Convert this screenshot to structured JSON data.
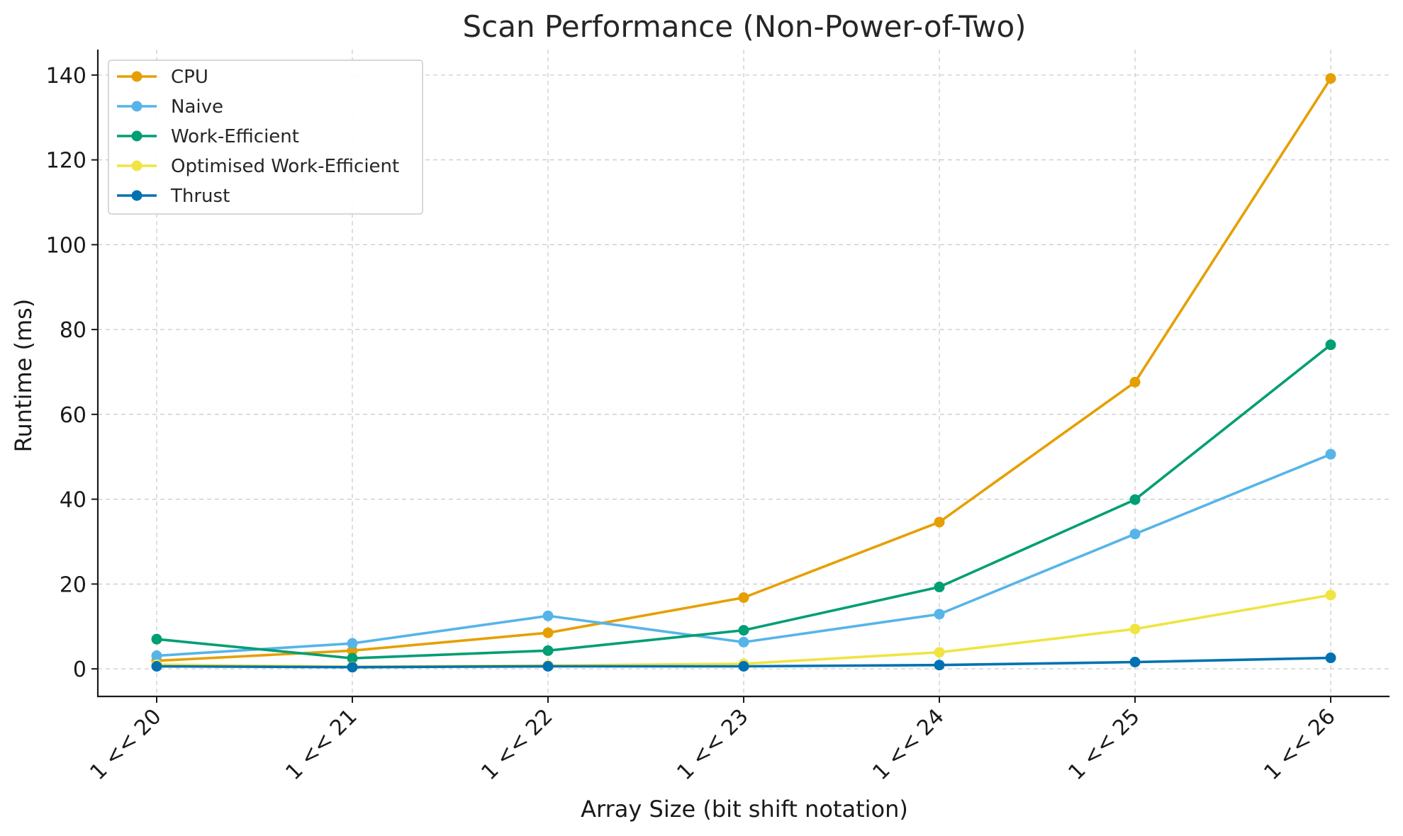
{
  "chart_data": {
    "type": "line",
    "title": "Scan Performance (Non-Power-of-Two)",
    "xlabel": "Array Size (bit shift notation)",
    "ylabel": "Runtime (ms)",
    "categories": [
      "1 << 20",
      "1 << 21",
      "1 << 22",
      "1 << 23",
      "1 << 24",
      "1 << 25",
      "1 << 26"
    ],
    "yticks": [
      0,
      20,
      40,
      60,
      80,
      100,
      120,
      140
    ],
    "ylim": [
      -6.5,
      146
    ],
    "grid": true,
    "legend_position": "top-left",
    "series": [
      {
        "name": "CPU",
        "color": "#E69F00",
        "values": [
          1.9,
          4.3,
          8.5,
          16.8,
          34.6,
          67.6,
          139.2
        ]
      },
      {
        "name": "Naive",
        "color": "#56B4E9",
        "values": [
          3.1,
          6.0,
          12.5,
          6.3,
          12.9,
          31.8,
          50.6
        ]
      },
      {
        "name": "Work-Efficient",
        "color": "#009E73",
        "values": [
          7.0,
          2.5,
          4.3,
          9.1,
          19.3,
          39.9,
          76.4
        ]
      },
      {
        "name": "Optimised Work-Efficient",
        "color": "#F0E442",
        "values": [
          1.0,
          0.5,
          0.8,
          1.2,
          3.9,
          9.4,
          17.4
        ]
      },
      {
        "name": "Thrust",
        "color": "#0072B2",
        "values": [
          0.6,
          0.4,
          0.6,
          0.6,
          0.9,
          1.6,
          2.6
        ]
      }
    ]
  }
}
